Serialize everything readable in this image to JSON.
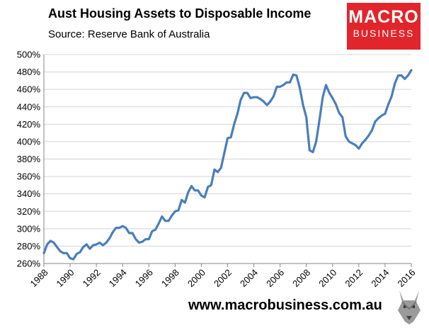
{
  "header": {
    "title": "Aust Housing Assets to Disposable Income",
    "subtitle": "Source: Reserve Bank of Australia"
  },
  "logo": {
    "line1": "MACRO",
    "line2": "BUSINESS"
  },
  "footer": {
    "url": "www.macrobusiness.com.au",
    "mascot_icon": "wolf-head-icon"
  },
  "chart_data": {
    "type": "line",
    "title": "Aust Housing Assets to Disposable Income",
    "subtitle": "Source: Reserve Bank of Australia",
    "xlabel": "",
    "ylabel": "",
    "xlim": [
      1988,
      2016
    ],
    "ylim": [
      260,
      500
    ],
    "yticks": [
      260,
      280,
      300,
      320,
      340,
      360,
      380,
      400,
      420,
      440,
      460,
      480,
      500
    ],
    "ytick_labels": [
      "260%",
      "280%",
      "300%",
      "320%",
      "340%",
      "360%",
      "380%",
      "400%",
      "420%",
      "440%",
      "460%",
      "480%",
      "500%"
    ],
    "xticks": [
      1988,
      1990,
      1992,
      1994,
      1996,
      1998,
      2000,
      2002,
      2004,
      2006,
      2008,
      2010,
      2012,
      2014,
      2016
    ],
    "xtick_labels": [
      "1988",
      "1990",
      "1992",
      "1994",
      "1996",
      "1998",
      "2000",
      "2002",
      "2004",
      "2006",
      "2008",
      "2010",
      "2012",
      "2014",
      "2016"
    ],
    "grid": "horizontal",
    "line_color": "#4a7ebb",
    "series": [
      {
        "x": [
          1988.0,
          1988.25,
          1988.5,
          1988.75,
          1989.0,
          1989.25,
          1989.5,
          1989.75,
          1990.0,
          1990.25,
          1990.5,
          1990.75,
          1991.0,
          1991.25,
          1991.5,
          1991.75,
          1992.0,
          1992.25,
          1992.5,
          1992.75,
          1993.0,
          1993.25,
          1993.5,
          1993.75,
          1994.0,
          1994.25,
          1994.5,
          1994.75,
          1995.0,
          1995.25,
          1995.5,
          1995.75,
          1996.0,
          1996.25,
          1996.5,
          1996.75,
          1997.0,
          1997.25,
          1997.5,
          1997.75,
          1998.0,
          1998.25,
          1998.5,
          1998.75,
          1999.0,
          1999.25,
          1999.5,
          1999.75,
          2000.0,
          2000.25,
          2000.5,
          2000.75,
          2001.0,
          2001.25,
          2001.5,
          2001.75,
          2002.0,
          2002.25,
          2002.5,
          2002.75,
          2003.0,
          2003.25,
          2003.5,
          2003.75,
          2004.0,
          2004.25,
          2004.5,
          2004.75,
          2005.0,
          2005.25,
          2005.5,
          2005.75,
          2006.0,
          2006.25,
          2006.5,
          2006.75,
          2007.0,
          2007.25,
          2007.5,
          2007.75,
          2008.0,
          2008.25,
          2008.5,
          2008.75,
          2009.0,
          2009.25,
          2009.5,
          2009.75,
          2010.0,
          2010.25,
          2010.5,
          2010.75,
          2011.0,
          2011.25,
          2011.5,
          2011.75,
          2012.0,
          2012.25,
          2012.5,
          2012.75,
          2013.0,
          2013.25,
          2013.5,
          2013.75,
          2014.0,
          2014.25,
          2014.5,
          2014.75,
          2015.0,
          2015.25,
          2015.5,
          2015.75,
          2016.0
        ],
        "values": [
          272,
          282,
          286,
          284,
          279,
          274,
          272,
          272,
          266,
          265,
          271,
          273,
          279,
          282,
          277,
          281,
          282,
          284,
          281,
          284,
          289,
          296,
          301,
          301,
          303,
          301,
          295,
          295,
          288,
          284,
          285,
          288,
          288,
          297,
          299,
          306,
          314,
          309,
          309,
          315,
          320,
          321,
          333,
          330,
          342,
          349,
          344,
          344,
          338,
          336,
          348,
          350,
          368,
          365,
          370,
          387,
          404,
          405,
          420,
          432,
          448,
          456,
          456,
          450,
          451,
          451,
          449,
          446,
          442,
          446,
          452,
          463,
          463,
          465,
          468,
          468,
          477,
          476,
          462,
          442,
          428,
          390,
          388,
          400,
          425,
          451,
          465,
          456,
          450,
          443,
          433,
          428,
          406,
          400,
          398,
          396,
          392,
          398,
          402,
          407,
          413,
          423,
          427,
          430,
          432,
          443,
          452,
          467,
          476,
          476,
          472,
          476,
          482
        ]
      }
    ]
  }
}
